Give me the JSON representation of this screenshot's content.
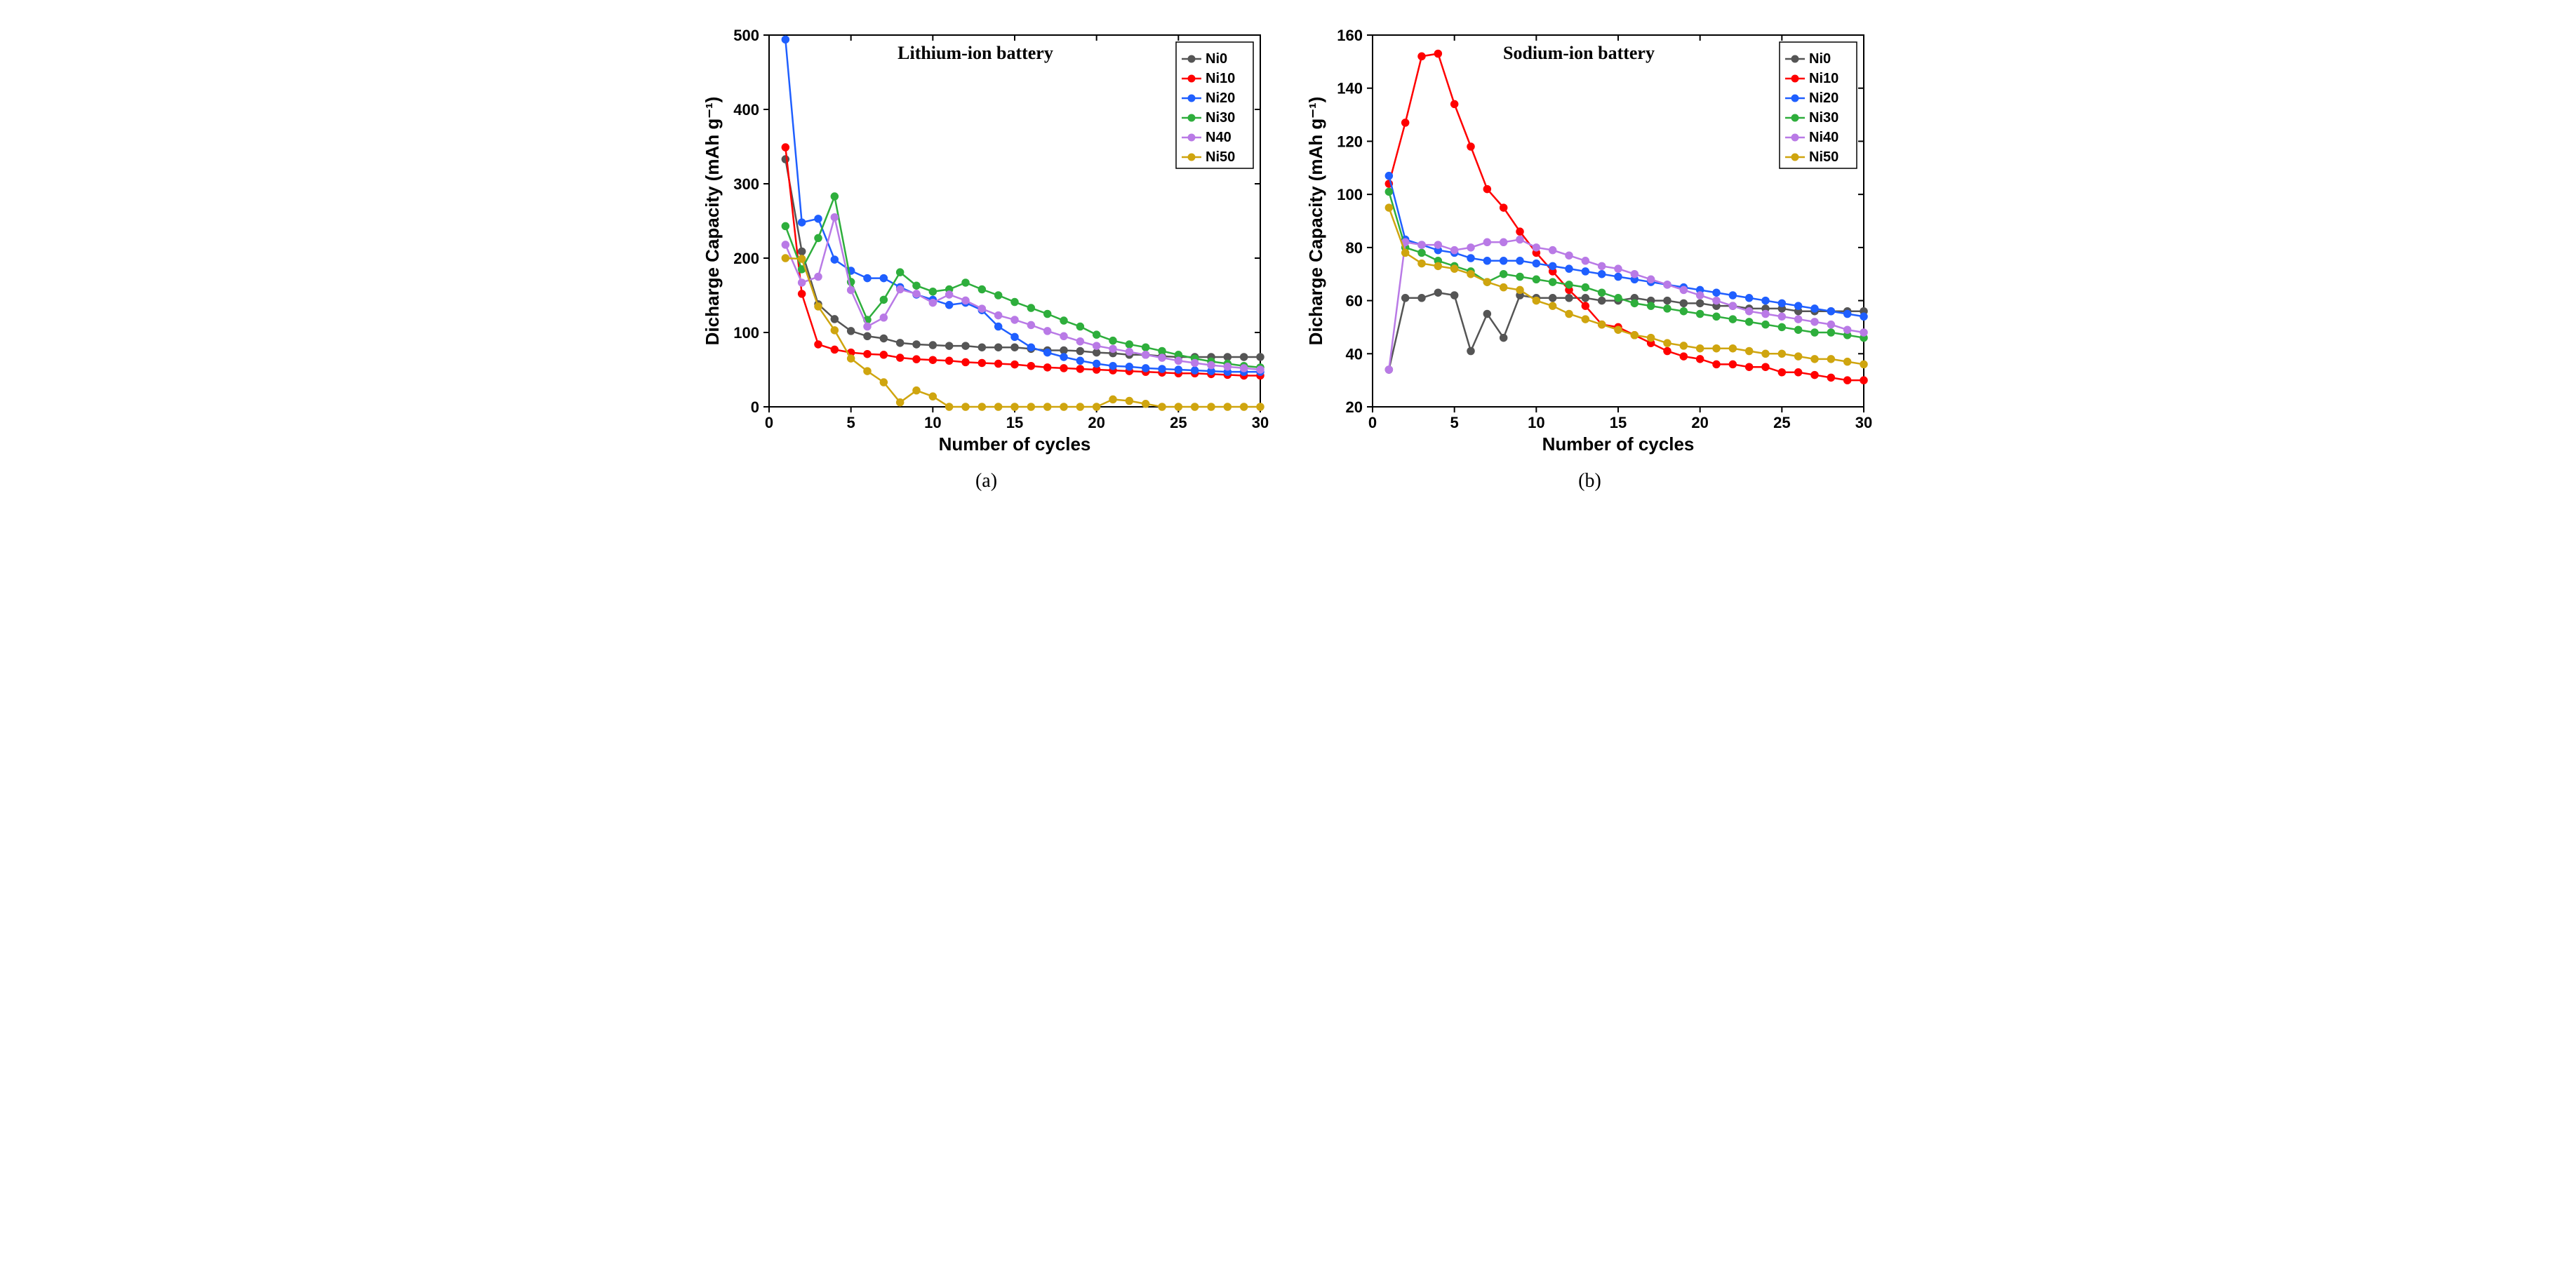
{
  "figure": {
    "background_color": "#ffffff",
    "axis_color": "#000000",
    "grid_color": "#e0e0e0",
    "font_family_axis": "Arial",
    "font_family_title": "Times New Roman",
    "axis_fontsize": 22,
    "title_fontsize": 26,
    "axis_title_fontsize": 26,
    "line_width": 2.5,
    "marker_size": 5,
    "marker_style": "circle",
    "panels": [
      "a",
      "b"
    ]
  },
  "palette": {
    "Ni0": "#555555",
    "Ni10": "#ff0000",
    "Ni20": "#1f5fff",
    "Ni30": "#2eae3c",
    "Ni40": "#b97ae6",
    "Ni50": "#cfa50f"
  },
  "chart_a": {
    "type": "line",
    "panel_label": "(a)",
    "title": "Lithium-ion battery",
    "xlabel": "Number of cycles",
    "ylabel": "Dicharge Capacity (mAh g⁻¹)",
    "xlim": [
      0,
      30
    ],
    "ylim": [
      0,
      500
    ],
    "xtick_step": 5,
    "ytick_step": 100,
    "xticks": [
      0,
      5,
      10,
      15,
      20,
      25,
      30
    ],
    "yticks": [
      0,
      100,
      200,
      300,
      400,
      500
    ],
    "legend_order": [
      "Ni0",
      "Ni10",
      "Ni20",
      "Ni30",
      "N40",
      "Ni50"
    ],
    "legend_series_map": {
      "Ni0": "Ni0",
      "Ni10": "Ni10",
      "Ni20": "Ni20",
      "Ni30": "Ni30",
      "N40": "Ni40",
      "Ni50": "Ni50"
    },
    "legend_position": "upper-right",
    "x": [
      1,
      2,
      3,
      4,
      5,
      6,
      7,
      8,
      9,
      10,
      11,
      12,
      13,
      14,
      15,
      16,
      17,
      18,
      19,
      20,
      21,
      22,
      23,
      24,
      25,
      26,
      27,
      28,
      29,
      30
    ],
    "series": {
      "Ni0": [
        333,
        209,
        138,
        118,
        102,
        95,
        92,
        86,
        84,
        83,
        82,
        82,
        80,
        80,
        80,
        78,
        76,
        76,
        75,
        73,
        72,
        70,
        70,
        68,
        67,
        67,
        67,
        67,
        67,
        67
      ],
      "Ni10": [
        349,
        152,
        84,
        77,
        73,
        71,
        70,
        66,
        64,
        63,
        62,
        60,
        59,
        58,
        57,
        55,
        53,
        52,
        51,
        50,
        49,
        48,
        47,
        46,
        45,
        45,
        44,
        43,
        42,
        42
      ],
      "Ni20": [
        494,
        248,
        253,
        198,
        183,
        173,
        173,
        161,
        151,
        144,
        137,
        140,
        130,
        108,
        94,
        80,
        73,
        67,
        62,
        58,
        55,
        54,
        52,
        51,
        50,
        49,
        48,
        47,
        47,
        47
      ],
      "Ni30": [
        243,
        185,
        227,
        283,
        168,
        117,
        144,
        181,
        163,
        155,
        158,
        167,
        158,
        150,
        141,
        133,
        125,
        116,
        108,
        97,
        89,
        84,
        80,
        75,
        70,
        65,
        61,
        58,
        55,
        53
      ],
      "Ni40": [
        218,
        167,
        175,
        255,
        157,
        108,
        120,
        158,
        152,
        140,
        151,
        143,
        132,
        123,
        117,
        110,
        102,
        95,
        88,
        82,
        78,
        74,
        70,
        66,
        62,
        59,
        56,
        54,
        52,
        50
      ],
      "Ni50": [
        200,
        199,
        135,
        103,
        65,
        48,
        33,
        6,
        22,
        14,
        0,
        0,
        0,
        0,
        0,
        0,
        0,
        0,
        0,
        0,
        10,
        8,
        4,
        0,
        0,
        0,
        0,
        0,
        0,
        0
      ]
    }
  },
  "chart_b": {
    "type": "line",
    "panel_label": "(b)",
    "title": "Sodium-ion battery",
    "xlabel": "Number of cycles",
    "ylabel": "Dicharge Capacity (mAh g⁻¹)",
    "xlim": [
      0,
      30
    ],
    "ylim": [
      20,
      160
    ],
    "xtick_step": 5,
    "ytick_step": 20,
    "xticks": [
      0,
      5,
      10,
      15,
      20,
      25,
      30
    ],
    "yticks": [
      20,
      40,
      60,
      80,
      100,
      120,
      140,
      160
    ],
    "legend_order": [
      "Ni0",
      "Ni10",
      "Ni20",
      "Ni30",
      "Ni40",
      "Ni50"
    ],
    "legend_series_map": {
      "Ni0": "Ni0",
      "Ni10": "Ni10",
      "Ni20": "Ni20",
      "Ni30": "Ni30",
      "Ni40": "Ni40",
      "Ni50": "Ni50"
    },
    "legend_position": "upper-right",
    "x": [
      1,
      2,
      3,
      4,
      5,
      6,
      7,
      8,
      9,
      10,
      11,
      12,
      13,
      14,
      15,
      16,
      17,
      18,
      19,
      20,
      21,
      22,
      23,
      24,
      25,
      26,
      27,
      28,
      29,
      30
    ],
    "series": {
      "Ni0": [
        34,
        61,
        61,
        63,
        62,
        41,
        55,
        46,
        62,
        61,
        61,
        61,
        61,
        60,
        60,
        61,
        60,
        60,
        59,
        59,
        58,
        58,
        57,
        57,
        57,
        56,
        56,
        56,
        56,
        56
      ],
      "Ni10": [
        104,
        127,
        152,
        153,
        134,
        118,
        102,
        95,
        86,
        78,
        71,
        64,
        58,
        51,
        50,
        47,
        44,
        41,
        39,
        38,
        36,
        36,
        35,
        35,
        33,
        33,
        32,
        31,
        30,
        30
      ],
      "Ni20": [
        107,
        83,
        81,
        79,
        78,
        76,
        75,
        75,
        75,
        74,
        73,
        72,
        71,
        70,
        69,
        68,
        67,
        66,
        65,
        64,
        63,
        62,
        61,
        60,
        59,
        58,
        57,
        56,
        55,
        54
      ],
      "Ni30": [
        101,
        80,
        78,
        75,
        73,
        71,
        67,
        70,
        69,
        68,
        67,
        66,
        65,
        63,
        61,
        59,
        58,
        57,
        56,
        55,
        54,
        53,
        52,
        51,
        50,
        49,
        48,
        48,
        47,
        46
      ],
      "Ni40": [
        34,
        82,
        81,
        81,
        79,
        80,
        82,
        82,
        83,
        80,
        79,
        77,
        75,
        73,
        72,
        70,
        68,
        66,
        64,
        62,
        60,
        58,
        56,
        55,
        54,
        53,
        52,
        51,
        49,
        48
      ],
      "Ni50": [
        95,
        78,
        74,
        73,
        72,
        70,
        67,
        65,
        64,
        60,
        58,
        55,
        53,
        51,
        49,
        47,
        46,
        44,
        43,
        42,
        42,
        42,
        41,
        40,
        40,
        39,
        38,
        38,
        37,
        36
      ]
    }
  }
}
